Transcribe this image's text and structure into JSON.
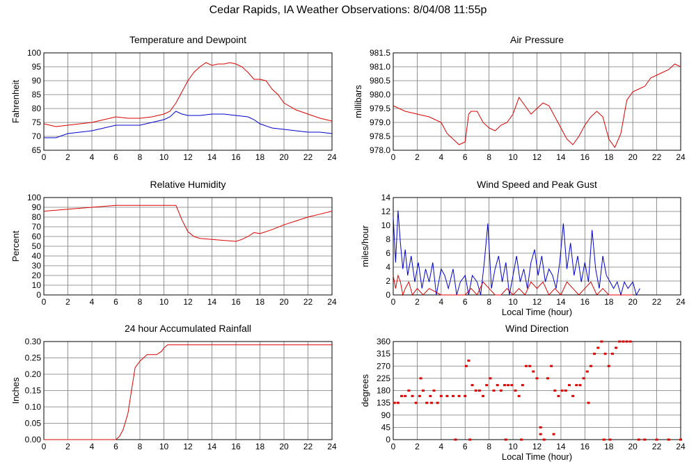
{
  "page": {
    "title": "Cedar Rapids, IA Weather Observations: 8/04/08 11:55p"
  },
  "colors": {
    "temperature": "#dd0000",
    "dewpoint": "#0000cc",
    "grid": "#777777"
  },
  "chart_data": [
    {
      "id": "temp",
      "type": "line",
      "title": "Temperature and Dewpoint",
      "xlabel": "",
      "ylabel": "Fahrenheit",
      "xlim": [
        0,
        24
      ],
      "ylim": [
        65,
        100
      ],
      "xticks": [
        "0",
        "2",
        "4",
        "6",
        "8",
        "10",
        "12",
        "14",
        "16",
        "18",
        "20",
        "22",
        "24"
      ],
      "yticks": [
        "65",
        "70",
        "75",
        "80",
        "85",
        "90",
        "95",
        "100"
      ],
      "grid": true,
      "series": [
        {
          "color": "#dd0000",
          "x": [
            0,
            1,
            2,
            3,
            4,
            5,
            6,
            7,
            8,
            9,
            10,
            10.5,
            11,
            11.5,
            12,
            12.5,
            13,
            13.5,
            14,
            14.5,
            15,
            15.5,
            16,
            16.5,
            17,
            17.5,
            18,
            18.5,
            19,
            19.5,
            20,
            21,
            22,
            23,
            24
          ],
          "y": [
            74.5,
            73.5,
            74,
            74.5,
            75,
            76,
            77,
            76.5,
            76.5,
            77,
            78,
            79,
            82,
            86,
            90,
            93,
            95,
            96.5,
            95.5,
            96,
            96,
            96.5,
            96,
            95,
            93,
            90.5,
            90.5,
            90,
            87,
            85,
            82,
            79.5,
            78,
            76.5,
            75.5
          ]
        },
        {
          "color": "#0000cc",
          "x": [
            0,
            1,
            2,
            3,
            4,
            5,
            6,
            7,
            8,
            9,
            10,
            10.5,
            11,
            11.5,
            12,
            13,
            14,
            15,
            16,
            17,
            17.5,
            18,
            19,
            20,
            21,
            22,
            23,
            24
          ],
          "y": [
            69.5,
            69.5,
            71,
            71.5,
            72,
            73,
            74,
            74,
            74,
            75,
            76,
            77,
            79,
            78,
            77.5,
            77.5,
            78,
            78,
            77.5,
            77,
            76,
            74.5,
            73,
            72.5,
            72,
            71.5,
            71.5,
            71
          ]
        }
      ]
    },
    {
      "id": "pressure",
      "type": "line",
      "title": "Air Pressure",
      "xlabel": "",
      "ylabel": "millibars",
      "xlim": [
        0,
        24
      ],
      "ylim": [
        978.0,
        981.5
      ],
      "xticks": [
        "0",
        "2",
        "4",
        "6",
        "8",
        "10",
        "12",
        "14",
        "16",
        "18",
        "20",
        "22",
        "24"
      ],
      "yticks": [
        "978.0",
        "978.5",
        "979.0",
        "979.5",
        "980.0",
        "980.5",
        "981.0",
        "981.5"
      ],
      "grid": true,
      "series": [
        {
          "color": "#dd0000",
          "x": [
            0,
            1,
            2,
            3,
            4,
            4.5,
            5,
            5.5,
            6,
            6.3,
            6.5,
            7,
            7.5,
            8,
            8.5,
            9,
            9.5,
            10,
            10.5,
            11,
            11.5,
            12,
            12.5,
            13,
            13.5,
            14,
            14.5,
            15,
            15.5,
            16,
            16.5,
            17,
            17.5,
            18,
            18.5,
            19,
            19.5,
            20,
            20.5,
            21,
            21.5,
            22,
            22.5,
            23,
            23.5,
            24
          ],
          "y": [
            979.6,
            979.4,
            979.3,
            979.2,
            979.0,
            978.6,
            978.4,
            978.2,
            978.3,
            979.3,
            979.4,
            979.4,
            979.0,
            978.8,
            978.7,
            978.9,
            979.0,
            979.3,
            979.9,
            979.6,
            979.3,
            979.5,
            979.7,
            979.6,
            979.2,
            978.8,
            978.4,
            978.2,
            978.5,
            978.9,
            979.2,
            979.4,
            979.2,
            978.4,
            978.1,
            978.6,
            979.8,
            980.1,
            980.2,
            980.3,
            980.6,
            980.7,
            980.8,
            980.9,
            981.1,
            981.0
          ]
        }
      ]
    },
    {
      "id": "rh",
      "type": "line",
      "title": "Relative Humidity",
      "xlabel": "",
      "ylabel": "Percent",
      "xlim": [
        0,
        24
      ],
      "ylim": [
        0,
        100
      ],
      "xticks": [
        "0",
        "2",
        "4",
        "6",
        "8",
        "10",
        "12",
        "14",
        "16",
        "18",
        "20",
        "22",
        "24"
      ],
      "yticks": [
        "0",
        "10",
        "20",
        "30",
        "40",
        "50",
        "60",
        "70",
        "80",
        "90",
        "100"
      ],
      "grid": true,
      "series": [
        {
          "color": "#dd0000",
          "x": [
            0,
            1,
            2,
            3,
            4,
            5,
            6,
            7,
            8,
            9,
            10,
            11,
            11.5,
            12,
            12.5,
            13,
            14,
            15,
            16,
            16.5,
            17,
            17.5,
            18,
            19,
            20,
            21,
            22,
            23,
            24
          ],
          "y": [
            86,
            87,
            88,
            89,
            90,
            91,
            92,
            92,
            92,
            92,
            92,
            92,
            77,
            65,
            60,
            58,
            57,
            56,
            55,
            57,
            60,
            64,
            63,
            67,
            72,
            76,
            80,
            83,
            86
          ]
        }
      ]
    },
    {
      "id": "wind",
      "type": "line",
      "title": "Wind Speed and Peak Gust",
      "xlabel": "Local Time (hour)",
      "ylabel": "miles/hour",
      "xlim": [
        0,
        24
      ],
      "ylim": [
        0,
        15
      ],
      "xticks": [
        "0",
        "2",
        "4",
        "6",
        "8",
        "10",
        "12",
        "14",
        "16",
        "18",
        "20",
        "22",
        "24"
      ],
      "yticks": [
        "0",
        "2",
        "4",
        "6",
        "8",
        "10",
        "12",
        "14"
      ],
      "grid": true,
      "series": [
        {
          "color": "#0000cc",
          "x": [
            0,
            0.2,
            0.4,
            0.6,
            0.8,
            1,
            1.2,
            1.5,
            1.8,
            2.1,
            2.4,
            2.7,
            3,
            3.3,
            3.6,
            4,
            4.3,
            4.6,
            5,
            5.3,
            5.6,
            6,
            6.3,
            6.6,
            7,
            7.3,
            7.6,
            7.9,
            8.2,
            8.5,
            8.8,
            9.1,
            9.4,
            9.7,
            10,
            10.3,
            10.6,
            10.9,
            11.2,
            11.5,
            11.8,
            12.1,
            12.4,
            12.7,
            13,
            13.3,
            13.6,
            13.9,
            14.2,
            14.5,
            14.8,
            15.1,
            15.4,
            15.7,
            16,
            16.3,
            16.6,
            16.9,
            17.2,
            17.5,
            17.8,
            18.1,
            18.4,
            18.7,
            19,
            19.3,
            19.6,
            20,
            20.3,
            20.6
          ],
          "y": [
            12,
            5,
            13,
            8,
            4,
            7,
            3,
            6,
            2,
            5,
            1,
            4,
            2,
            5,
            0,
            4,
            3,
            1,
            4,
            0,
            2,
            3,
            0,
            3,
            2,
            0,
            5,
            11,
            1,
            4,
            6,
            2,
            5,
            0,
            3,
            6,
            2,
            4,
            1,
            5,
            7,
            3,
            6,
            2,
            4,
            3,
            1,
            5,
            11,
            4,
            8,
            3,
            6,
            2,
            5,
            2,
            10,
            4,
            1,
            6,
            3,
            2,
            1,
            2,
            0,
            2,
            1,
            2,
            0,
            1
          ]
        },
        {
          "color": "#dd0000",
          "x": [
            0,
            0.2,
            0.4,
            0.6,
            0.8,
            1,
            1.3,
            1.6,
            2,
            2.5,
            3,
            4,
            5,
            6,
            6.5,
            7,
            7.5,
            8,
            8.5,
            9,
            9.5,
            10,
            10.5,
            11,
            11.5,
            12,
            12.5,
            13,
            13.5,
            14,
            14.5,
            15,
            15.5,
            16,
            16.5,
            17,
            17.5,
            18,
            19,
            20
          ],
          "y": [
            3,
            1,
            3,
            2,
            0,
            1,
            2,
            0,
            1,
            0,
            1,
            0,
            0,
            0,
            1,
            0,
            2,
            1,
            0,
            0,
            1,
            0,
            1,
            0,
            2,
            1,
            2,
            0,
            1,
            0,
            2,
            1,
            0,
            1,
            2,
            0,
            1,
            0,
            0,
            0
          ]
        }
      ]
    },
    {
      "id": "rain",
      "type": "line",
      "title": "24 hour Accumulated Rainfall",
      "xlabel": "",
      "ylabel": "Inches",
      "xlim": [
        0,
        24
      ],
      "ylim": [
        0,
        0.3
      ],
      "xticks": [
        "0",
        "2",
        "4",
        "6",
        "8",
        "10",
        "12",
        "14",
        "16",
        "18",
        "20",
        "22",
        "24"
      ],
      "yticks": [
        "0.00",
        "0.05",
        "0.10",
        "0.15",
        "0.20",
        "0.25",
        "0.30"
      ],
      "grid": true,
      "series": [
        {
          "color": "#dd0000",
          "x": [
            0,
            6,
            6.3,
            6.6,
            7,
            7.3,
            7.6,
            8,
            8.6,
            9.4,
            9.8,
            10,
            10.3,
            11,
            24
          ],
          "y": [
            0,
            0,
            0.01,
            0.03,
            0.08,
            0.15,
            0.22,
            0.24,
            0.26,
            0.26,
            0.27,
            0.28,
            0.29,
            0.29,
            0.29
          ]
        }
      ]
    },
    {
      "id": "dir",
      "type": "scatter",
      "title": "Wind Direction",
      "xlabel": "Local Time (hour)",
      "ylabel": "degrees",
      "xlim": [
        0,
        24
      ],
      "ylim": [
        0,
        360
      ],
      "xticks": [
        "0",
        "2",
        "4",
        "6",
        "8",
        "10",
        "12",
        "14",
        "16",
        "18",
        "20",
        "22",
        "24"
      ],
      "yticks": [
        "0",
        "45",
        "90",
        "135",
        "180",
        "225",
        "270",
        "315",
        "360"
      ],
      "grid": true,
      "series": [
        {
          "color": "#dd0000",
          "x": [
            0.1,
            0.4,
            0.7,
            1,
            1.3,
            1.6,
            1.9,
            2.2,
            2.5,
            2.8,
            3.1,
            3.4,
            3.7,
            4,
            4.5,
            5,
            5.5,
            6,
            6.1,
            6.3,
            6.6,
            6.9,
            7.2,
            7.5,
            7.8,
            8.1,
            8.4,
            8.7,
            9,
            9.3,
            9.6,
            9.9,
            10.2,
            10.5,
            10.8,
            11.1,
            11.4,
            11.7,
            12,
            12.3,
            12.6,
            12.9,
            13.2,
            13.5,
            13.8,
            14.1,
            14.4,
            14.7,
            15,
            15.3,
            15.6,
            15.9,
            16.2,
            16.5,
            16.8,
            17.1,
            17.4,
            17.7,
            18,
            18.3,
            18.6,
            18.9,
            19.2,
            19.5,
            19.8,
            20.5,
            21,
            22,
            23,
            24,
            2.3,
            3.2,
            5.2,
            6.4,
            9.4,
            10.7,
            12.3,
            13.4,
            16.3,
            17.6,
            18.1
          ],
          "y": [
            135,
            135,
            160,
            160,
            180,
            160,
            135,
            160,
            180,
            135,
            160,
            180,
            135,
            160,
            160,
            160,
            160,
            160,
            270,
            290,
            200,
            180,
            180,
            160,
            200,
            225,
            180,
            200,
            180,
            200,
            200,
            200,
            180,
            160,
            200,
            270,
            270,
            250,
            225,
            45,
            0,
            225,
            270,
            180,
            160,
            180,
            180,
            200,
            160,
            200,
            200,
            225,
            250,
            270,
            315,
            337,
            360,
            315,
            270,
            315,
            337,
            360,
            360,
            360,
            360,
            0,
            0,
            0,
            0,
            0,
            225,
            135,
            0,
            0,
            0,
            0,
            20,
            20,
            135,
            0,
            0
          ]
        }
      ]
    }
  ]
}
